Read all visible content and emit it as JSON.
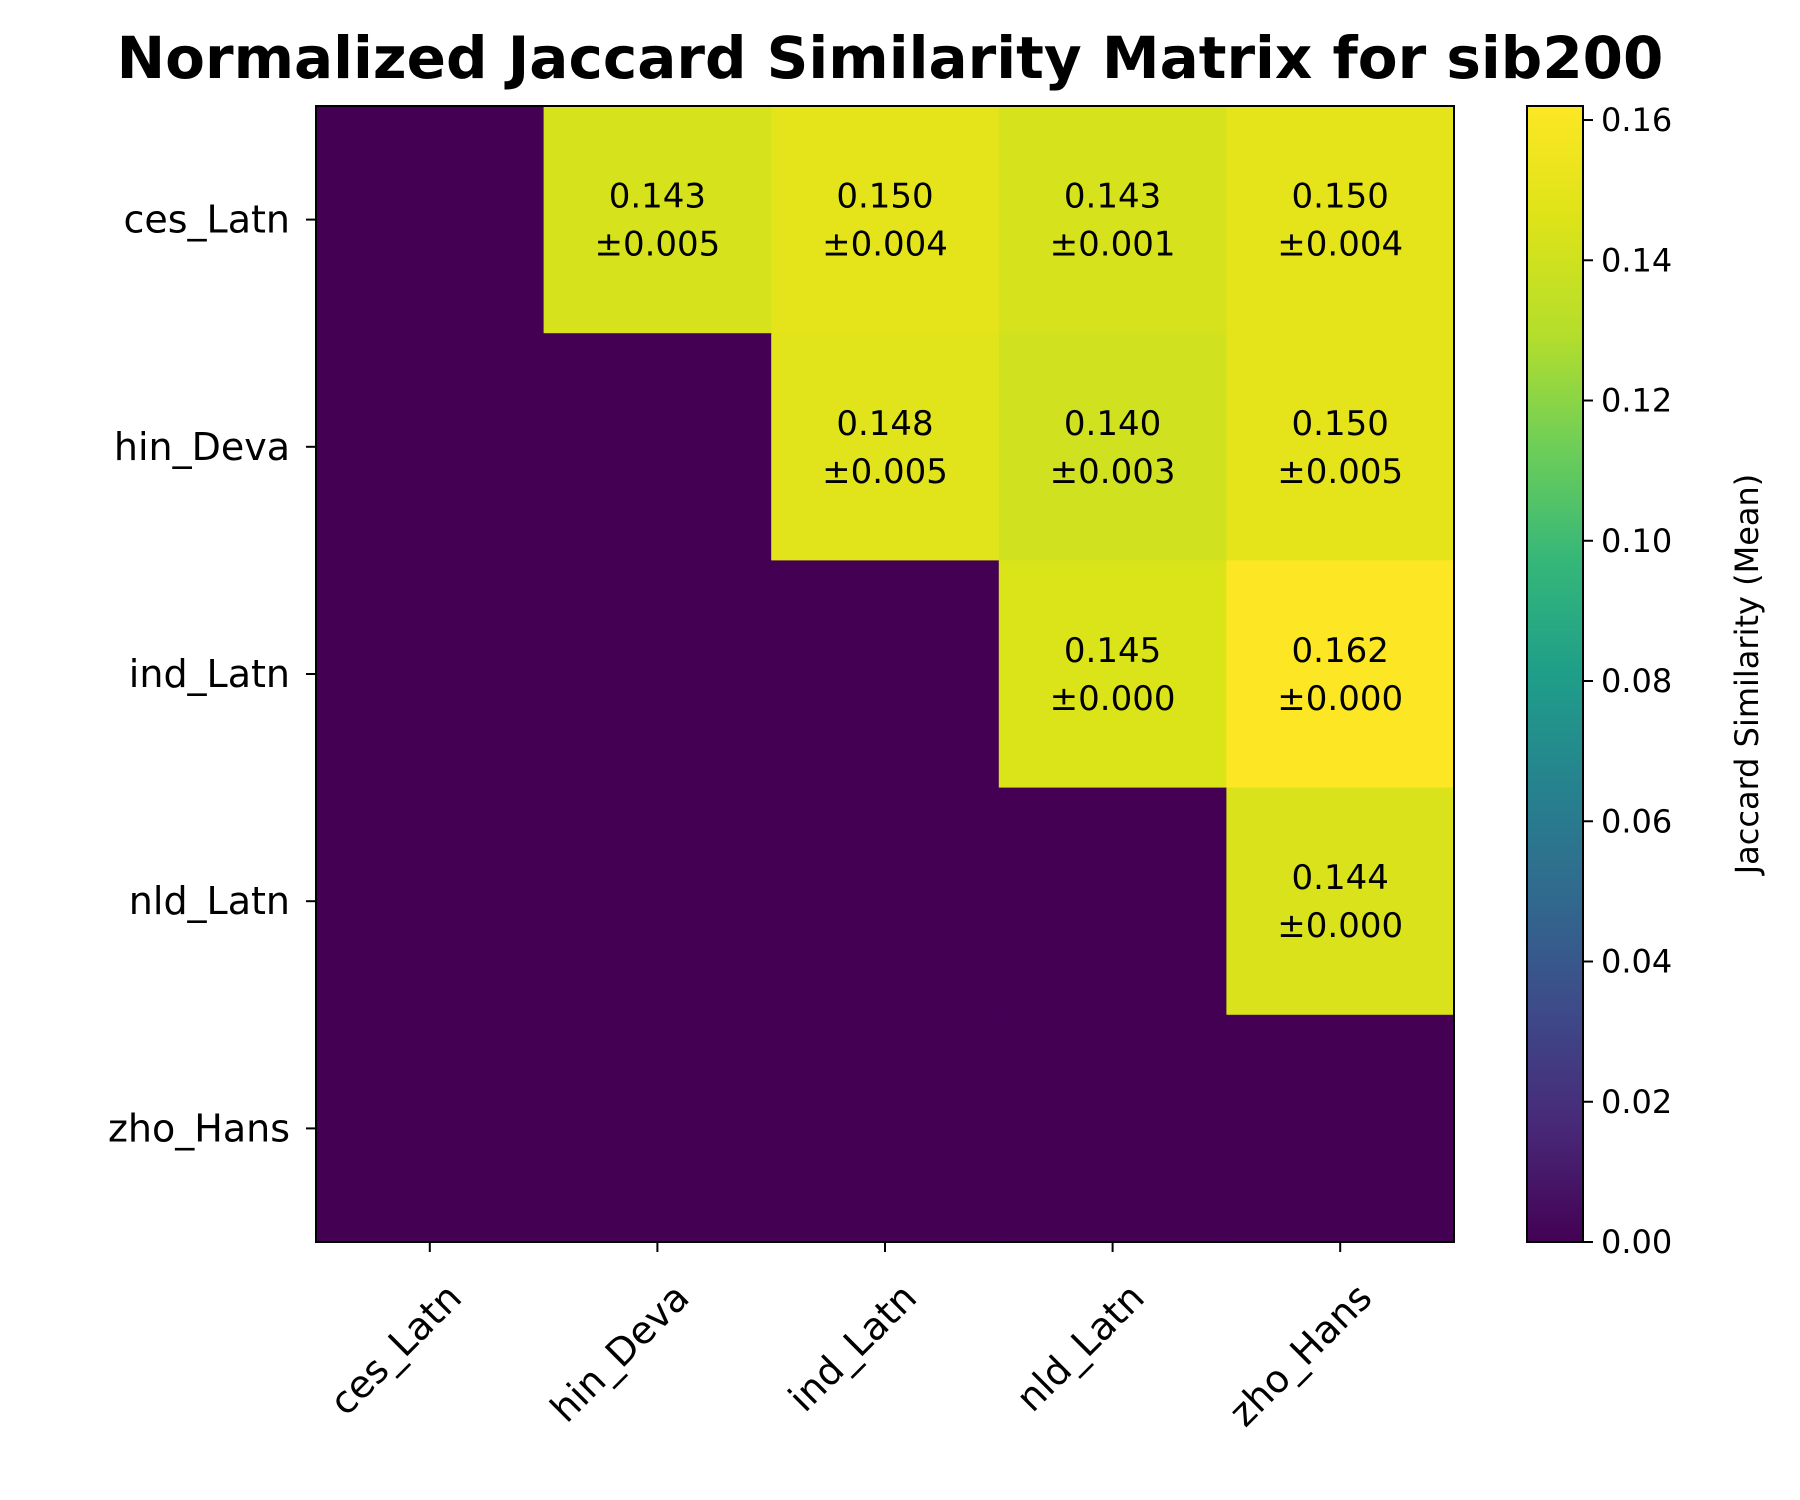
{
  "chart_data": {
    "type": "heatmap",
    "title": "Normalized Jaccard Similarity Matrix for sib200",
    "rows": [
      "ces_Latn",
      "hin_Deva",
      "ind_Latn",
      "nld_Latn",
      "zho_Hans"
    ],
    "columns": [
      "ces_Latn",
      "hin_Deva",
      "ind_Latn",
      "nld_Latn",
      "zho_Hans"
    ],
    "values": [
      [
        0,
        0.143,
        0.15,
        0.143,
        0.15
      ],
      [
        0,
        0,
        0.148,
        0.14,
        0.15
      ],
      [
        0,
        0,
        0,
        0.145,
        0.162
      ],
      [
        0,
        0,
        0,
        0,
        0.144
      ],
      [
        0,
        0,
        0,
        0,
        0
      ]
    ],
    "cell_labels": [
      [
        null,
        {
          "mean": "0.143",
          "std": "±0.005"
        },
        {
          "mean": "0.150",
          "std": "±0.004"
        },
        {
          "mean": "0.143",
          "std": "±0.001"
        },
        {
          "mean": "0.150",
          "std": "±0.004"
        }
      ],
      [
        null,
        null,
        {
          "mean": "0.148",
          "std": "±0.005"
        },
        {
          "mean": "0.140",
          "std": "±0.003"
        },
        {
          "mean": "0.150",
          "std": "±0.005"
        }
      ],
      [
        null,
        null,
        null,
        {
          "mean": "0.145",
          "std": "±0.000"
        },
        {
          "mean": "0.162",
          "std": "±0.000"
        }
      ],
      [
        null,
        null,
        null,
        null,
        {
          "mean": "0.144",
          "std": "±0.000"
        }
      ],
      [
        null,
        null,
        null,
        null,
        null
      ]
    ],
    "colorbar": {
      "label": "Jaccard Similarity (Mean)",
      "range": [
        0,
        0.162
      ],
      "ticks": [
        "0.00",
        "0.02",
        "0.04",
        "0.06",
        "0.08",
        "0.10",
        "0.12",
        "0.14",
        "0.16"
      ],
      "colormap": "viridis"
    }
  }
}
